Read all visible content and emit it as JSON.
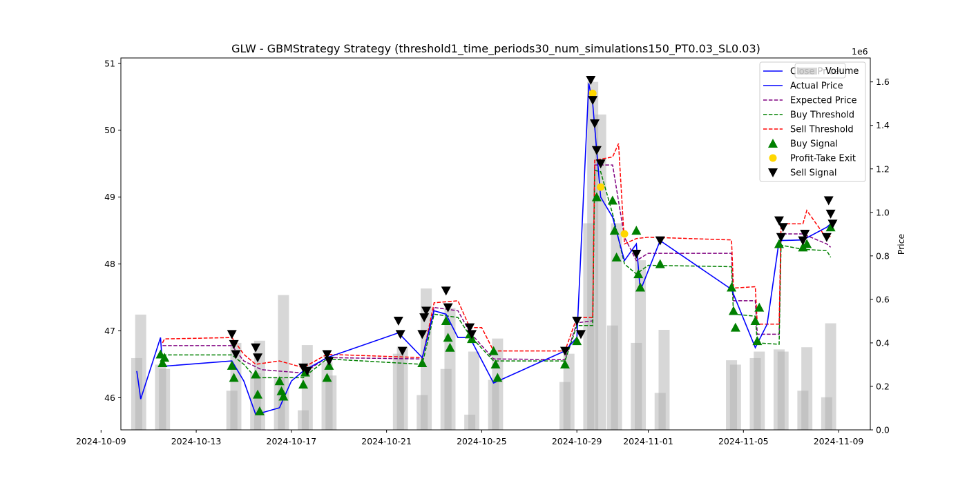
{
  "chart_data": {
    "type": "line",
    "title": "GLW - GBMStrategy Strategy (threshold1_time_periods30_num_simulations150_PT0.03_SL0.03)",
    "xlabel": "",
    "ylabel": "",
    "y2label": "Price",
    "y2_offset_label": "1e6",
    "xlim": [
      "2024-10-09T20:00",
      "2024-11-10T08:00"
    ],
    "ylim": [
      45.52,
      51.08
    ],
    "y2lim": [
      0,
      1.71
    ],
    "x_tick_labels": [
      "2024-10-09",
      "2024-10-13",
      "2024-10-17",
      "2024-10-21",
      "2024-10-25",
      "2024-10-29",
      "2024-11-01",
      "2024-11-05",
      "2024-11-09"
    ],
    "y_tick_labels": [
      "46",
      "47",
      "48",
      "49",
      "50",
      "51"
    ],
    "y2_tick_labels": [
      "0.0",
      "0.2",
      "0.4",
      "0.6",
      "0.8",
      "1.0",
      "1.2",
      "1.4",
      "1.6"
    ],
    "grid": false,
    "legend_position": "top-right",
    "legend_volume": "Volume",
    "legend": [
      {
        "label": "Close Price",
        "kind": "line",
        "color": "#0000ff",
        "dash": "solid"
      },
      {
        "label": "Actual Price",
        "kind": "line",
        "color": "#0000ff",
        "dash": "solid"
      },
      {
        "label": "Expected Price",
        "kind": "line",
        "color": "#800080",
        "dash": "dashed"
      },
      {
        "label": "Buy Threshold",
        "kind": "line",
        "color": "#008000",
        "dash": "dashed"
      },
      {
        "label": "Sell Threshold",
        "kind": "line",
        "color": "#ff0000",
        "dash": "dashed"
      },
      {
        "label": "Buy Signal",
        "kind": "up",
        "color": "#008000"
      },
      {
        "label": "Profit-Take Exit",
        "kind": "dot",
        "color": "#ffd700"
      },
      {
        "label": "Sell Signal",
        "kind": "down",
        "color": "#000000"
      }
    ],
    "actual_price": [
      [
        "2024-10-10T12:00",
        46.4
      ],
      [
        "2024-10-10T14:00",
        46.2
      ],
      [
        "2024-10-10T16:00",
        45.98
      ],
      [
        "2024-10-11T12:00",
        46.9
      ],
      [
        "2024-10-11T14:00",
        46.47
      ],
      [
        "2024-10-14T12:00",
        46.55
      ],
      [
        "2024-10-15T00:00",
        46.25
      ],
      [
        "2024-10-15T12:00",
        45.75
      ],
      [
        "2024-10-16T12:00",
        45.85
      ],
      [
        "2024-10-17T00:00",
        46.25
      ],
      [
        "2024-10-17T12:00",
        46.4
      ],
      [
        "2024-10-18T12:00",
        46.6
      ],
      [
        "2024-10-21T12:00",
        46.97
      ],
      [
        "2024-10-22T12:00",
        46.6
      ],
      [
        "2024-10-23T00:00",
        47.3
      ],
      [
        "2024-10-23T12:00",
        47.25
      ],
      [
        "2024-10-24T00:00",
        46.9
      ],
      [
        "2024-10-24T12:00",
        46.9
      ],
      [
        "2024-10-25T12:00",
        46.22
      ],
      [
        "2024-10-28T12:00",
        46.7
      ],
      [
        "2024-10-29T00:00",
        46.9
      ],
      [
        "2024-10-29T12:00",
        50.7
      ],
      [
        "2024-10-29T16:00",
        50.4
      ],
      [
        "2024-10-30T00:00",
        49.0
      ],
      [
        "2024-10-30T12:00",
        48.7
      ],
      [
        "2024-10-31T00:00",
        48.05
      ],
      [
        "2024-10-31T12:00",
        48.3
      ],
      [
        "2024-10-31T16:00",
        47.6
      ],
      [
        "2024-11-01T12:00",
        48.35
      ],
      [
        "2024-11-04T12:00",
        47.62
      ],
      [
        "2024-11-05T12:00",
        46.75
      ],
      [
        "2024-11-06T00:00",
        47.1
      ],
      [
        "2024-11-06T12:00",
        48.35
      ],
      [
        "2024-11-07T12:00",
        48.36
      ],
      [
        "2024-11-08T12:00",
        48.55
      ],
      [
        "2024-11-08T16:00",
        48.6
      ]
    ],
    "expected_price": [
      [
        "2024-10-11T14:00",
        46.78
      ],
      [
        "2024-10-14T12:00",
        46.78
      ],
      [
        "2024-10-15T00:00",
        46.55
      ],
      [
        "2024-10-15T18:00",
        46.42
      ],
      [
        "2024-10-17T12:00",
        46.37
      ],
      [
        "2024-10-18T12:00",
        46.6
      ],
      [
        "2024-10-22T12:00",
        46.58
      ],
      [
        "2024-10-23T00:00",
        47.35
      ],
      [
        "2024-10-24T00:00",
        47.3
      ],
      [
        "2024-10-24T12:00",
        46.98
      ],
      [
        "2024-10-25T12:00",
        46.58
      ],
      [
        "2024-10-28T12:00",
        46.57
      ],
      [
        "2024-10-29T00:00",
        47.12
      ],
      [
        "2024-10-29T16:00",
        47.15
      ],
      [
        "2024-10-29T18:00",
        49.48
      ],
      [
        "2024-10-30T12:00",
        49.48
      ],
      [
        "2024-10-31T00:00",
        48.4
      ],
      [
        "2024-10-31T12:00",
        48.05
      ],
      [
        "2024-11-01T00:00",
        48.16
      ],
      [
        "2024-11-04T12:00",
        48.16
      ],
      [
        "2024-11-04T14:00",
        47.45
      ],
      [
        "2024-11-05T12:00",
        47.45
      ],
      [
        "2024-11-05T14:00",
        46.95
      ],
      [
        "2024-11-06T12:00",
        46.95
      ],
      [
        "2024-11-06T14:00",
        48.45
      ],
      [
        "2024-11-07T12:00",
        48.45
      ],
      [
        "2024-11-08T12:00",
        48.3
      ],
      [
        "2024-11-08T16:00",
        48.25
      ]
    ],
    "buy_threshold": [
      [
        "2024-10-11T14:00",
        46.64
      ],
      [
        "2024-10-14T12:00",
        46.64
      ],
      [
        "2024-10-15T00:00",
        46.5
      ],
      [
        "2024-10-15T12:00",
        46.3
      ],
      [
        "2024-10-17T12:00",
        46.3
      ],
      [
        "2024-10-18T12:00",
        46.58
      ],
      [
        "2024-10-22T12:00",
        46.5
      ],
      [
        "2024-10-23T00:00",
        47.25
      ],
      [
        "2024-10-24T00:00",
        47.2
      ],
      [
        "2024-10-24T12:00",
        46.93
      ],
      [
        "2024-10-25T12:00",
        46.55
      ],
      [
        "2024-10-28T12:00",
        46.55
      ],
      [
        "2024-10-29T00:00",
        47.08
      ],
      [
        "2024-10-29T16:00",
        47.08
      ],
      [
        "2024-10-29T18:00",
        49.4
      ],
      [
        "2024-10-30T00:00",
        49.38
      ],
      [
        "2024-10-30T12:00",
        48.75
      ],
      [
        "2024-10-31T00:00",
        48.0
      ],
      [
        "2024-10-31T12:00",
        47.85
      ],
      [
        "2024-11-01T00:00",
        47.98
      ],
      [
        "2024-11-04T12:00",
        47.96
      ],
      [
        "2024-11-04T14:00",
        47.25
      ],
      [
        "2024-11-05T12:00",
        47.22
      ],
      [
        "2024-11-05T14:00",
        46.82
      ],
      [
        "2024-11-06T12:00",
        46.8
      ],
      [
        "2024-11-06T14:00",
        48.28
      ],
      [
        "2024-11-07T12:00",
        48.22
      ],
      [
        "2024-11-08T12:00",
        48.2
      ],
      [
        "2024-11-08T16:00",
        48.1
      ]
    ],
    "sell_threshold": [
      [
        "2024-10-11T14:00",
        46.82
      ],
      [
        "2024-10-11T16:00",
        46.88
      ],
      [
        "2024-10-14T12:00",
        46.9
      ],
      [
        "2024-10-15T00:00",
        46.65
      ],
      [
        "2024-10-15T12:00",
        46.5
      ],
      [
        "2024-10-16T12:00",
        46.55
      ],
      [
        "2024-10-17T12:00",
        46.45
      ],
      [
        "2024-10-18T12:00",
        46.65
      ],
      [
        "2024-10-22T12:00",
        46.6
      ],
      [
        "2024-10-22T14:00",
        46.72
      ],
      [
        "2024-10-23T00:00",
        47.42
      ],
      [
        "2024-10-24T00:00",
        47.45
      ],
      [
        "2024-10-24T12:00",
        47.05
      ],
      [
        "2024-10-25T00:00",
        47.05
      ],
      [
        "2024-10-25T12:00",
        46.7
      ],
      [
        "2024-10-28T12:00",
        46.7
      ],
      [
        "2024-10-29T00:00",
        47.2
      ],
      [
        "2024-10-29T16:00",
        47.2
      ],
      [
        "2024-10-29T18:00",
        49.55
      ],
      [
        "2024-10-30T12:00",
        49.6
      ],
      [
        "2024-10-30T18:00",
        49.8
      ],
      [
        "2024-10-31T00:00",
        48.3
      ],
      [
        "2024-10-31T12:00",
        48.38
      ],
      [
        "2024-11-01T00:00",
        48.4
      ],
      [
        "2024-11-04T12:00",
        48.36
      ],
      [
        "2024-11-04T14:00",
        47.64
      ],
      [
        "2024-11-05T12:00",
        47.66
      ],
      [
        "2024-11-05T14:00",
        47.1
      ],
      [
        "2024-11-06T12:00",
        47.1
      ],
      [
        "2024-11-06T14:00",
        48.6
      ],
      [
        "2024-11-07T12:00",
        48.6
      ],
      [
        "2024-11-07T16:00",
        48.8
      ],
      [
        "2024-11-08T12:00",
        48.38
      ],
      [
        "2024-11-08T16:00",
        48.42
      ]
    ],
    "volume": [
      [
        "2024-10-10T12:00",
        0.33
      ],
      [
        "2024-10-10T16:00",
        0.53
      ],
      [
        "2024-10-11T12:00",
        0.3
      ],
      [
        "2024-10-11T16:00",
        0.28
      ],
      [
        "2024-10-14T12:00",
        0.18
      ],
      [
        "2024-10-14T16:00",
        0.4
      ],
      [
        "2024-10-15T12:00",
        0.26
      ],
      [
        "2024-10-15T16:00",
        0.41
      ],
      [
        "2024-10-16T12:00",
        0.24
      ],
      [
        "2024-10-16T16:00",
        0.62
      ],
      [
        "2024-10-17T12:00",
        0.09
      ],
      [
        "2024-10-17T16:00",
        0.39
      ],
      [
        "2024-10-18T12:00",
        0.31
      ],
      [
        "2024-10-18T16:00",
        0.25
      ],
      [
        "2024-10-21T12:00",
        0.35
      ],
      [
        "2024-10-21T16:00",
        0.38
      ],
      [
        "2024-10-22T12:00",
        0.16
      ],
      [
        "2024-10-22T16:00",
        0.65
      ],
      [
        "2024-10-23T12:00",
        0.28
      ],
      [
        "2024-10-23T16:00",
        0.56
      ],
      [
        "2024-10-24T12:00",
        0.07
      ],
      [
        "2024-10-24T16:00",
        0.36
      ],
      [
        "2024-10-25T12:00",
        0.23
      ],
      [
        "2024-10-25T16:00",
        0.42
      ],
      [
        "2024-10-28T12:00",
        0.22
      ],
      [
        "2024-10-28T16:00",
        0.35
      ],
      [
        "2024-10-29T12:00",
        0.95
      ],
      [
        "2024-10-29T16:00",
        1.6
      ],
      [
        "2024-10-30T00:00",
        1.45
      ],
      [
        "2024-10-30T12:00",
        0.48
      ],
      [
        "2024-10-30T16:00",
        0.95
      ],
      [
        "2024-10-31T12:00",
        0.4
      ],
      [
        "2024-10-31T16:00",
        0.78
      ],
      [
        "2024-11-01T12:00",
        0.17
      ],
      [
        "2024-11-01T16:00",
        0.46
      ],
      [
        "2024-11-04T12:00",
        0.32
      ],
      [
        "2024-11-04T16:00",
        0.3
      ],
      [
        "2024-11-05T12:00",
        0.33
      ],
      [
        "2024-11-05T16:00",
        0.36
      ],
      [
        "2024-11-06T12:00",
        0.37
      ],
      [
        "2024-11-06T16:00",
        0.36
      ],
      [
        "2024-11-07T12:00",
        0.18
      ],
      [
        "2024-11-07T16:00",
        0.38
      ],
      [
        "2024-11-08T12:00",
        0.15
      ],
      [
        "2024-11-08T16:00",
        0.49
      ]
    ],
    "buy_signals": [
      [
        "2024-10-11T12:00",
        46.65
      ],
      [
        "2024-10-11T14:00",
        46.52
      ],
      [
        "2024-10-11T16:00",
        46.6
      ],
      [
        "2024-10-14T12:00",
        46.48
      ],
      [
        "2024-10-14T14:00",
        46.3
      ],
      [
        "2024-10-15T12:00",
        46.35
      ],
      [
        "2024-10-15T14:00",
        46.05
      ],
      [
        "2024-10-15T16:00",
        45.8
      ],
      [
        "2024-10-16T12:00",
        46.25
      ],
      [
        "2024-10-16T14:00",
        46.1
      ],
      [
        "2024-10-16T16:00",
        46.02
      ],
      [
        "2024-10-17T12:00",
        46.2
      ],
      [
        "2024-10-17T14:00",
        46.38
      ],
      [
        "2024-10-18T12:00",
        46.3
      ],
      [
        "2024-10-18T14:00",
        46.48
      ],
      [
        "2024-10-22T12:00",
        46.52
      ],
      [
        "2024-10-23T12:00",
        47.15
      ],
      [
        "2024-10-23T14:00",
        46.9
      ],
      [
        "2024-10-23T16:00",
        46.75
      ],
      [
        "2024-10-24T12:00",
        46.95
      ],
      [
        "2024-10-24T14:00",
        46.88
      ],
      [
        "2024-10-25T12:00",
        46.7
      ],
      [
        "2024-10-25T14:00",
        46.5
      ],
      [
        "2024-10-25T16:00",
        46.3
      ],
      [
        "2024-10-28T12:00",
        46.5
      ],
      [
        "2024-10-29T00:00",
        46.85
      ],
      [
        "2024-10-29T20:00",
        49.0
      ],
      [
        "2024-10-30T12:00",
        48.95
      ],
      [
        "2024-10-30T14:00",
        48.5
      ],
      [
        "2024-10-30T16:00",
        48.1
      ],
      [
        "2024-10-31T12:00",
        48.5
      ],
      [
        "2024-10-31T14:00",
        47.85
      ],
      [
        "2024-10-31T16:00",
        47.65
      ],
      [
        "2024-11-01T12:00",
        48.0
      ],
      [
        "2024-11-04T12:00",
        47.65
      ],
      [
        "2024-11-04T14:00",
        47.3
      ],
      [
        "2024-11-04T16:00",
        47.05
      ],
      [
        "2024-11-05T12:00",
        47.15
      ],
      [
        "2024-11-05T14:00",
        46.85
      ],
      [
        "2024-11-05T16:00",
        47.35
      ],
      [
        "2024-11-06T12:00",
        48.3
      ],
      [
        "2024-11-07T12:00",
        48.25
      ],
      [
        "2024-11-07T16:00",
        48.3
      ],
      [
        "2024-11-08T16:00",
        48.55
      ]
    ],
    "profit_take_exits": [
      [
        "2024-10-29T16:00",
        50.55
      ],
      [
        "2024-10-30T00:00",
        49.15
      ],
      [
        "2024-10-31T00:00",
        48.45
      ]
    ],
    "sell_signals": [
      [
        "2024-10-14T12:00",
        46.95
      ],
      [
        "2024-10-14T14:00",
        46.8
      ],
      [
        "2024-10-14T16:00",
        46.65
      ],
      [
        "2024-10-15T12:00",
        46.75
      ],
      [
        "2024-10-15T14:00",
        46.6
      ],
      [
        "2024-10-17T12:00",
        46.45
      ],
      [
        "2024-10-17T16:00",
        46.4
      ],
      [
        "2024-10-18T12:00",
        46.65
      ],
      [
        "2024-10-18T14:00",
        46.55
      ],
      [
        "2024-10-21T12:00",
        47.15
      ],
      [
        "2024-10-21T14:00",
        46.95
      ],
      [
        "2024-10-21T16:00",
        46.7
      ],
      [
        "2024-10-22T12:00",
        46.95
      ],
      [
        "2024-10-22T14:00",
        47.2
      ],
      [
        "2024-10-22T16:00",
        47.3
      ],
      [
        "2024-10-23T12:00",
        47.6
      ],
      [
        "2024-10-23T14:00",
        47.35
      ],
      [
        "2024-10-24T12:00",
        47.05
      ],
      [
        "2024-10-24T14:00",
        46.95
      ],
      [
        "2024-10-28T12:00",
        46.7
      ],
      [
        "2024-10-29T00:00",
        47.15
      ],
      [
        "2024-10-29T04:00",
        46.95
      ],
      [
        "2024-10-29T14:00",
        50.75
      ],
      [
        "2024-10-29T16:00",
        50.45
      ],
      [
        "2024-10-29T18:00",
        50.1
      ],
      [
        "2024-10-29T20:00",
        49.7
      ],
      [
        "2024-10-30T00:00",
        49.5
      ],
      [
        "2024-10-31T12:00",
        48.15
      ],
      [
        "2024-11-01T12:00",
        48.35
      ],
      [
        "2024-11-06T12:00",
        48.65
      ],
      [
        "2024-11-06T14:00",
        48.4
      ],
      [
        "2024-11-06T16:00",
        48.55
      ],
      [
        "2024-11-07T12:00",
        48.35
      ],
      [
        "2024-11-07T14:00",
        48.45
      ],
      [
        "2024-11-08T12:00",
        48.4
      ],
      [
        "2024-11-08T14:00",
        48.95
      ],
      [
        "2024-11-08T16:00",
        48.75
      ],
      [
        "2024-11-08T18:00",
        48.6
      ]
    ]
  }
}
